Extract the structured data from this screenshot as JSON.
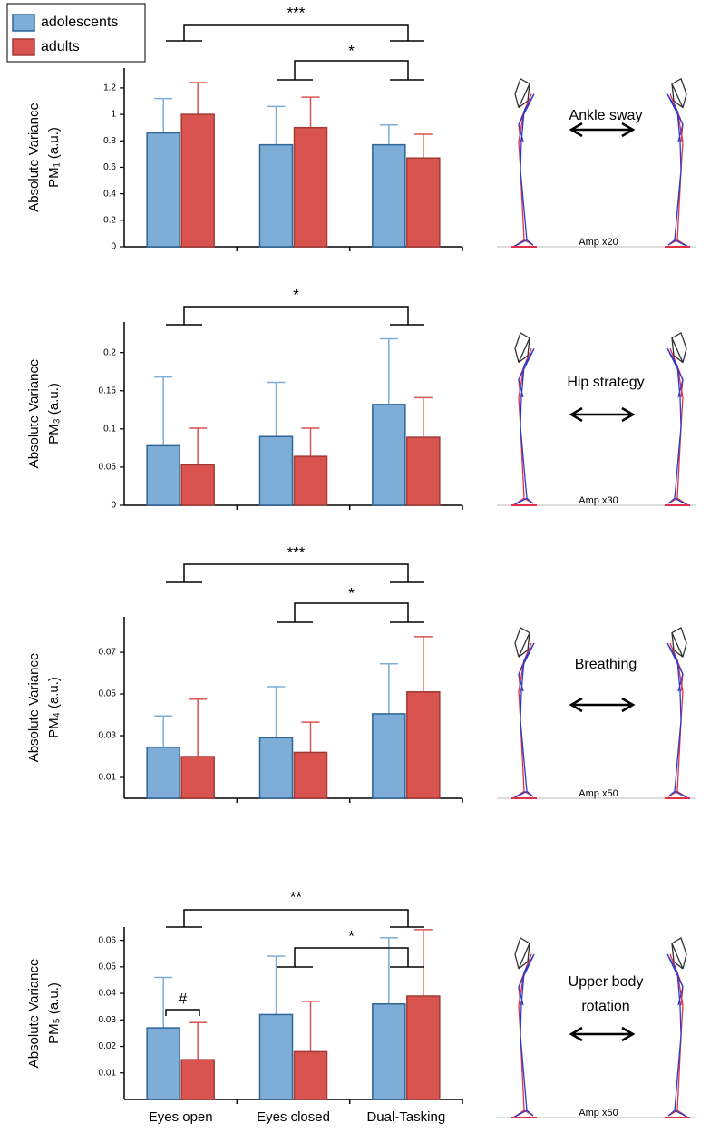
{
  "chart_data": [
    {
      "type": "bar",
      "categories": [
        null,
        null,
        null
      ],
      "ylabel": [
        "Absolute Variance",
        "PM₁ (a.u.)"
      ],
      "ylim": [
        0,
        1.35
      ],
      "yticks": [
        0,
        0.2,
        0.4,
        0.6,
        0.8,
        1,
        1.2
      ],
      "series": [
        {
          "name": "adolescents",
          "color": "#7eaed8",
          "values": [
            0.86,
            0.77,
            0.77
          ],
          "errors": [
            0.26,
            0.29,
            0.15
          ]
        },
        {
          "name": "adults",
          "color": "#d9534f",
          "values": [
            1.0,
            0.9,
            0.67
          ],
          "errors": [
            0.24,
            0.23,
            0.18
          ]
        }
      ],
      "significance": [
        "***",
        "*"
      ],
      "figure": {
        "label": [
          "Ankle sway"
        ],
        "amplification": "Amp x20"
      }
    },
    {
      "type": "bar",
      "categories": [
        null,
        null,
        null
      ],
      "ylabel": [
        "Absolute Variance",
        "PM₃ (a.u.)"
      ],
      "ylim": [
        0,
        0.24
      ],
      "yticks": [
        0,
        0.05,
        0.1,
        0.15,
        0.2
      ],
      "series": [
        {
          "color": "#7eaed8",
          "values": [
            0.078,
            0.09,
            0.132
          ],
          "errors": [
            0.09,
            0.071,
            0.086
          ]
        },
        {
          "color": "#d9534f",
          "values": [
            0.053,
            0.064,
            0.089
          ],
          "errors": [
            0.048,
            0.037,
            0.052
          ]
        }
      ],
      "significance": [
        "*"
      ],
      "figure": {
        "label": [
          "Hip strategy"
        ],
        "amplification": "Amp x30"
      }
    },
    {
      "type": "bar",
      "categories": [
        null,
        null,
        null
      ],
      "ylabel": [
        "Absolute Variance",
        "PM₄ (a.u.)"
      ],
      "ylim": [
        0,
        0.087
      ],
      "yticks": [
        0.01,
        0.03,
        0.05,
        0.07
      ],
      "series": [
        {
          "color": "#7eaed8",
          "values": [
            0.0245,
            0.029,
            0.0405
          ],
          "errors": [
            0.015,
            0.0245,
            0.024
          ]
        },
        {
          "color": "#d9534f",
          "values": [
            0.02,
            0.022,
            0.051
          ],
          "errors": [
            0.0275,
            0.0145,
            0.0265
          ]
        }
      ],
      "significance": [
        "***",
        "*"
      ],
      "figure": {
        "label": [
          "Breathing"
        ],
        "amplification": "Amp x50"
      }
    },
    {
      "type": "bar",
      "categories": [
        "Eyes open",
        "Eyes closed",
        "Dual-Tasking"
      ],
      "ylabel": [
        "Absolute Variance",
        "PM₅ (a.u.)"
      ],
      "ylim": [
        0,
        0.065
      ],
      "yticks": [
        0.01,
        0.02,
        0.03,
        0.04,
        0.05,
        0.06
      ],
      "series": [
        {
          "color": "#7eaed8",
          "values": [
            0.027,
            0.032,
            0.036
          ],
          "errors": [
            0.019,
            0.022,
            0.025
          ]
        },
        {
          "color": "#d9534f",
          "values": [
            0.015,
            0.018,
            0.039
          ],
          "errors": [
            0.014,
            0.019,
            0.025
          ]
        }
      ],
      "significance": [
        "**",
        "*",
        "#"
      ],
      "figure": {
        "label": [
          "Upper body",
          "rotation"
        ],
        "amplification": "Amp x50"
      }
    }
  ]
}
